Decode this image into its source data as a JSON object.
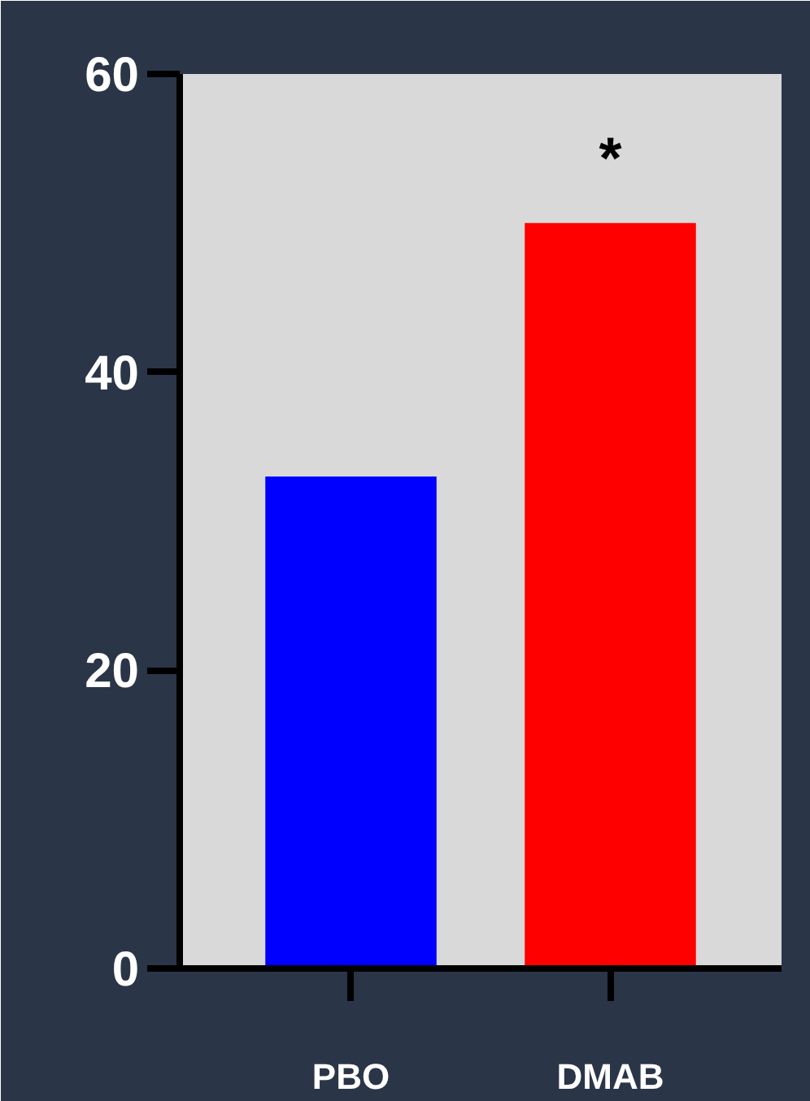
{
  "chart_data": {
    "type": "bar",
    "categories": [
      "PBO",
      "DMAB"
    ],
    "values": [
      33,
      50
    ],
    "colors": [
      "#0000ff",
      "#ff0000"
    ],
    "ylim": [
      0,
      60
    ],
    "yticks": [
      0,
      20,
      40,
      60
    ],
    "grid": false,
    "annotations": [
      "*"
    ]
  }
}
